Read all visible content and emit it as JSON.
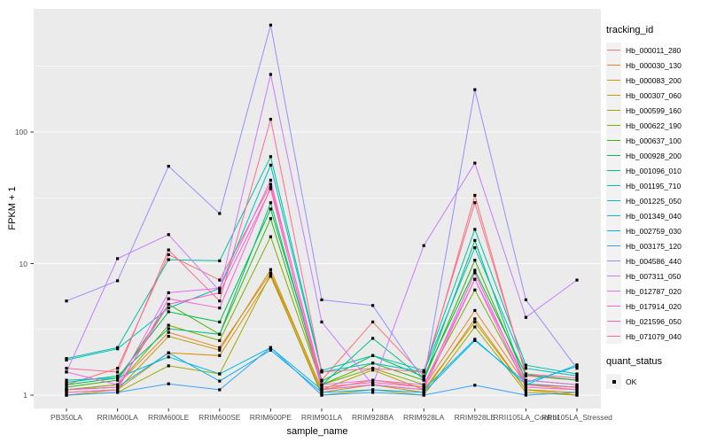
{
  "figure": {
    "x_axis_title": "sample_name",
    "y_axis_title": "FPKM + 1"
  },
  "legend": {
    "tracking_title": "tracking_id",
    "quant_title": "quant_status",
    "quant_items": [
      {
        "label": "OK",
        "marker": "black-square"
      }
    ]
  },
  "colors": {
    "panel_background": "#EBEBEB",
    "gridline": "#FFFFFF",
    "legend_key_background": "#F2F2F2",
    "axis_text": "#4D4D4D",
    "tick_mark": "#333333",
    "point": "#000000",
    "background": "#FFFFFF"
  },
  "chart_data": {
    "type": "line",
    "title": "",
    "xlabel": "sample_name",
    "ylabel": "FPKM + 1",
    "y_scale": "log10",
    "ylim": [
      0.79,
      860
    ],
    "y_major_ticks": [
      1,
      10,
      100
    ],
    "y_minor_ticks": [
      3.162,
      31.62,
      316.2
    ],
    "grid": true,
    "legend_position": "right",
    "points": {
      "shape": "square",
      "color": "#000000",
      "status_label": "OK"
    },
    "categories": [
      "PB350LA",
      "RRIM600LA",
      "RRIM600LE",
      "RRIM600SE",
      "RRIM600PE",
      "RRIM901LA",
      "RRIM928BA",
      "RRIM928LA",
      "RRIM928LE",
      "RRII105LA_Control",
      "RRII105LA_Stressed"
    ],
    "series": [
      {
        "name": "Hb_000011_280",
        "color": "#F8766D",
        "values": [
          1.2,
          1.6,
          11.7,
          7.5,
          40,
          1.3,
          3.6,
          1.4,
          33,
          1.4,
          1.3
        ]
      },
      {
        "name": "Hb_000030_130",
        "color": "#EA8331",
        "values": [
          1.1,
          1.2,
          3.0,
          2.3,
          8.5,
          1.1,
          1.3,
          1.15,
          4.4,
          1.2,
          1.1
        ]
      },
      {
        "name": "Hb_000083_200",
        "color": "#D89000",
        "values": [
          1.05,
          1.1,
          2.1,
          2.0,
          8.0,
          1.05,
          1.2,
          1.05,
          3.8,
          1.1,
          1.05
        ]
      },
      {
        "name": "Hb_000307_060",
        "color": "#C09B00",
        "values": [
          1.0,
          1.1,
          2.8,
          2.2,
          9.0,
          1.1,
          1.55,
          1.1,
          3.6,
          1.1,
          1.0
        ]
      },
      {
        "name": "Hb_000599_160",
        "color": "#A3A500",
        "values": [
          1.0,
          1.05,
          1.67,
          1.45,
          8.3,
          1.0,
          1.1,
          1.0,
          3.3,
          1.05,
          1.0
        ]
      },
      {
        "name": "Hb_000622_190",
        "color": "#7CAE00",
        "values": [
          1.1,
          1.2,
          3.4,
          2.6,
          16,
          1.2,
          1.6,
          1.2,
          6.3,
          1.2,
          1.15
        ]
      },
      {
        "name": "Hb_000637_100",
        "color": "#39B600",
        "values": [
          1.15,
          1.3,
          4.9,
          2.9,
          22,
          1.2,
          1.75,
          1.3,
          10.6,
          1.3,
          1.2
        ]
      },
      {
        "name": "Hb_000928_200",
        "color": "#00BB4E",
        "values": [
          1.2,
          1.35,
          4.3,
          3.6,
          26,
          1.28,
          2.0,
          1.38,
          8.9,
          1.43,
          1.3
        ]
      },
      {
        "name": "Hb_001096_010",
        "color": "#00BF7D",
        "values": [
          1.25,
          1.4,
          3.2,
          2.9,
          29,
          1.19,
          2.7,
          1.32,
          15,
          1.22,
          1.15
        ]
      },
      {
        "name": "Hb_001195_710",
        "color": "#00C1A3",
        "values": [
          1.9,
          2.3,
          10.7,
          10.5,
          65,
          1.54,
          2.0,
          1.54,
          18.2,
          1.69,
          1.45
        ]
      },
      {
        "name": "Hb_001225_050",
        "color": "#00BFC4",
        "values": [
          1.85,
          2.25,
          4.6,
          6.5,
          56,
          1.5,
          1.75,
          1.5,
          13.2,
          1.6,
          1.4
        ]
      },
      {
        "name": "Hb_001349_040",
        "color": "#00BAE0",
        "values": [
          1.3,
          1.35,
          1.95,
          1.45,
          2.3,
          1.1,
          1.2,
          1.1,
          2.66,
          1.2,
          1.7
        ]
      },
      {
        "name": "Hb_002759_030",
        "color": "#00B0F6",
        "values": [
          1.1,
          1.15,
          2.1,
          1.28,
          2.2,
          1.05,
          1.1,
          1.05,
          2.6,
          1.25,
          1.65
        ]
      },
      {
        "name": "Hb_003175_120",
        "color": "#35A2FF",
        "values": [
          1.0,
          1.05,
          1.22,
          1.1,
          2.3,
          1.0,
          1.05,
          1.0,
          1.19,
          1.0,
          1.05
        ]
      },
      {
        "name": "Hb_004586_440",
        "color": "#9590FF",
        "values": [
          5.2,
          7.4,
          55,
          24,
          650,
          5.3,
          4.8,
          1.3,
          210,
          5.3,
          1.6
        ]
      },
      {
        "name": "Hb_007311_050",
        "color": "#C77CFF",
        "values": [
          1.5,
          10.9,
          16.6,
          6.2,
          274,
          3.6,
          1.2,
          13.7,
          58,
          3.9,
          7.5
        ]
      },
      {
        "name": "Hb_012787_020",
        "color": "#E76BF3",
        "values": [
          1.5,
          1.2,
          6.0,
          6.5,
          43,
          1.2,
          1.3,
          1.2,
          7.6,
          1.3,
          1.2
        ]
      },
      {
        "name": "Hb_017914_020",
        "color": "#FA62DB",
        "values": [
          1.05,
          1.1,
          5.4,
          4.6,
          38,
          1.1,
          1.2,
          1.1,
          7.6,
          1.15,
          1.1
        ]
      },
      {
        "name": "Hb_021596_050",
        "color": "#FF62BC",
        "values": [
          1.1,
          1.15,
          4.9,
          6.0,
          37,
          1.15,
          1.25,
          1.15,
          8.5,
          1.2,
          1.15
        ]
      },
      {
        "name": "Hb_071079_040",
        "color": "#FF6A98",
        "values": [
          1.6,
          1.5,
          12.7,
          5.2,
          125,
          1.5,
          1.6,
          1.5,
          29,
          1.45,
          1.35
        ]
      }
    ]
  }
}
